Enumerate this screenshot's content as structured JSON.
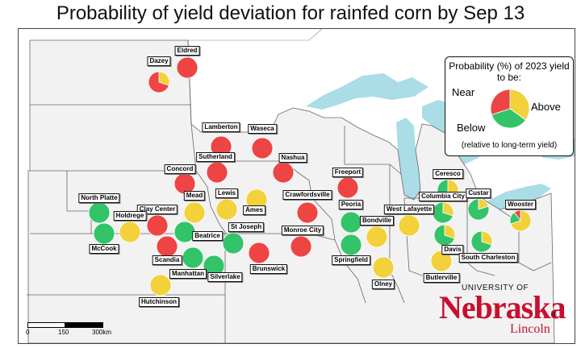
{
  "title": "Probability of yield deviation for rainfed corn by Sep 13",
  "colors": {
    "below": "#ee4444",
    "near": "#f2d13a",
    "above": "#33c46a",
    "water": "#aadde6",
    "land": "#f2f2f2"
  },
  "legend": {
    "title": "Probability (%) of 2023 yield to be:",
    "near": "Near",
    "above": "Above",
    "below": "Below",
    "note": "(relative to long-term yield)"
  },
  "sites": [
    {
      "name": "Dazey",
      "below": 70,
      "near": 30,
      "above": 0
    },
    {
      "name": "Eldred",
      "below": 100,
      "near": 0,
      "above": 0
    },
    {
      "name": "Lamberton",
      "below": 100,
      "near": 0,
      "above": 0
    },
    {
      "name": "Waseca",
      "below": 100,
      "near": 0,
      "above": 0
    },
    {
      "name": "Sutherland",
      "below": 100,
      "near": 0,
      "above": 0
    },
    {
      "name": "Nashua",
      "below": 100,
      "near": 0,
      "above": 0
    },
    {
      "name": "Concord",
      "below": 100,
      "near": 0,
      "above": 0
    },
    {
      "name": "Freeport",
      "below": 100,
      "near": 0,
      "above": 0
    },
    {
      "name": "Lewis",
      "below": 0,
      "near": 100,
      "above": 0
    },
    {
      "name": "Ames",
      "below": 0,
      "near": 100,
      "above": 0
    },
    {
      "name": "Crawfordsville",
      "below": 100,
      "near": 0,
      "above": 0
    },
    {
      "name": "Mead",
      "below": 0,
      "near": 100,
      "above": 0
    },
    {
      "name": "North Platte",
      "below": 0,
      "near": 0,
      "above": 100
    },
    {
      "name": "Clay Center",
      "below": 100,
      "near": 0,
      "above": 0
    },
    {
      "name": "Holdrege",
      "below": 0,
      "near": 100,
      "above": 0
    },
    {
      "name": "McCook",
      "below": 0,
      "near": 0,
      "above": 100
    },
    {
      "name": "Beatrice",
      "below": 0,
      "near": 0,
      "above": 100
    },
    {
      "name": "St Joseph",
      "below": 0,
      "near": 0,
      "above": 100
    },
    {
      "name": "Scandia",
      "below": 100,
      "near": 0,
      "above": 0
    },
    {
      "name": "Manhattan",
      "below": 0,
      "near": 0,
      "above": 100
    },
    {
      "name": "Silverlake",
      "below": 0,
      "near": 0,
      "above": 100
    },
    {
      "name": "Hutchinson",
      "below": 0,
      "near": 100,
      "above": 0
    },
    {
      "name": "Brunswick",
      "below": 100,
      "near": 0,
      "above": 0
    },
    {
      "name": "Monroe City",
      "below": 100,
      "near": 0,
      "above": 0
    },
    {
      "name": "Peoria",
      "below": 0,
      "near": 0,
      "above": 100
    },
    {
      "name": "Springfield",
      "below": 0,
      "near": 0,
      "above": 100
    },
    {
      "name": "Bondville",
      "below": 0,
      "near": 100,
      "above": 0
    },
    {
      "name": "West Lafayette",
      "below": 0,
      "near": 100,
      "above": 0
    },
    {
      "name": "Olney",
      "below": 0,
      "near": 100,
      "above": 0
    },
    {
      "name": "Ceresco",
      "below": 0,
      "near": 50,
      "above": 50
    },
    {
      "name": "Columbia City",
      "below": 0,
      "near": 30,
      "above": 70
    },
    {
      "name": "Custar",
      "below": 0,
      "near": 20,
      "above": 80
    },
    {
      "name": "Davis",
      "below": 0,
      "near": 30,
      "above": 70
    },
    {
      "name": "Butlerville",
      "below": 0,
      "near": 100,
      "above": 0
    },
    {
      "name": "South Charleston",
      "below": 0,
      "near": 30,
      "above": 70
    },
    {
      "name": "Wooster",
      "below": 10,
      "near": 70,
      "above": 20
    }
  ],
  "logo": {
    "top": "UNIVERSITY OF",
    "main": "Nebraska",
    "reg": "®",
    "sub": "Lincoln"
  },
  "scale": {
    "labels": [
      "0",
      "150",
      "300km"
    ]
  }
}
